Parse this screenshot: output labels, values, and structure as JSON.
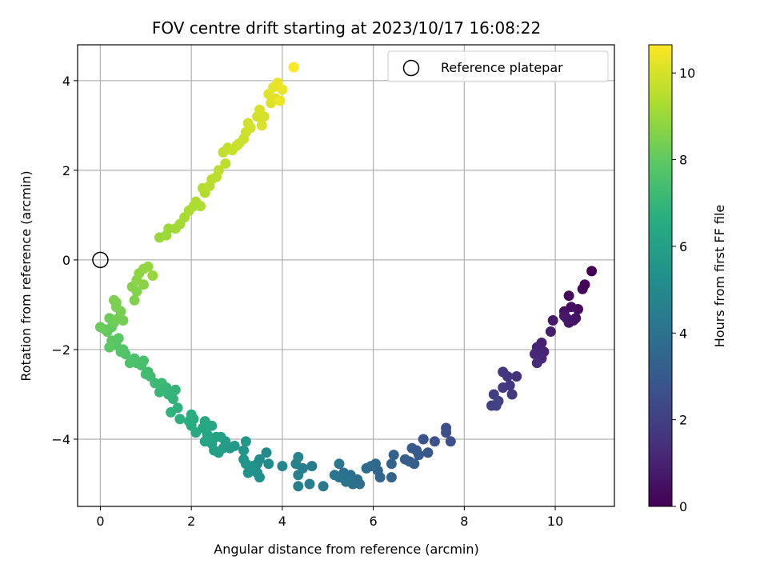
{
  "chart_data": {
    "type": "scatter",
    "title": "FOV centre drift starting at 2023/10/17 16:08:22",
    "xlabel": "Angular distance from reference (arcmin)",
    "ylabel": "Rotation from reference (arcmin)",
    "xlim": [
      -0.5,
      11.3
    ],
    "ylim": [
      -5.5,
      4.8
    ],
    "xticks": [
      0,
      2,
      4,
      6,
      8,
      10
    ],
    "yticks": [
      -4,
      -2,
      0,
      2,
      4
    ],
    "grid": true,
    "legend": {
      "label": "Reference platepar",
      "position": "upper right"
    },
    "reference_point": {
      "x": 0,
      "y": 0
    },
    "colorbar": {
      "label": "Hours from first FF file",
      "range": [
        0,
        10.65
      ],
      "ticks": [
        0,
        2,
        4,
        6,
        8,
        10
      ],
      "colormap": "viridis"
    },
    "points": [
      [
        10.8,
        -0.25,
        0.0
      ],
      [
        10.65,
        -0.55,
        0.1
      ],
      [
        10.6,
        -0.65,
        0.15
      ],
      [
        10.3,
        -0.8,
        0.25
      ],
      [
        10.5,
        -1.1,
        0.35
      ],
      [
        10.35,
        -1.05,
        0.4
      ],
      [
        10.2,
        -1.15,
        0.45
      ],
      [
        10.45,
        -1.3,
        0.5
      ],
      [
        10.25,
        -1.3,
        0.55
      ],
      [
        10.4,
        -1.35,
        0.6
      ],
      [
        10.3,
        -1.4,
        0.65
      ],
      [
        10.2,
        -1.25,
        0.7
      ],
      [
        9.95,
        -1.35,
        0.8
      ],
      [
        9.9,
        -1.6,
        0.9
      ],
      [
        9.7,
        -1.85,
        1.0
      ],
      [
        9.6,
        -1.95,
        1.05
      ],
      [
        9.75,
        -2.05,
        1.1
      ],
      [
        9.55,
        -2.1,
        1.15
      ],
      [
        9.7,
        -2.2,
        1.2
      ],
      [
        9.6,
        -2.3,
        1.3
      ],
      [
        9.15,
        -2.6,
        1.5
      ],
      [
        8.95,
        -2.6,
        1.6
      ],
      [
        8.85,
        -2.5,
        1.65
      ],
      [
        9.0,
        -2.8,
        1.7
      ],
      [
        8.85,
        -2.85,
        1.8
      ],
      [
        9.05,
        -3.0,
        1.85
      ],
      [
        8.65,
        -3.0,
        1.95
      ],
      [
        8.6,
        -3.25,
        2.0
      ],
      [
        8.7,
        -3.25,
        2.05
      ],
      [
        8.75,
        -3.15,
        2.1
      ],
      [
        7.6,
        -3.75,
        2.5
      ],
      [
        7.7,
        -4.05,
        2.6
      ],
      [
        7.6,
        -3.85,
        2.55
      ],
      [
        7.35,
        -4.05,
        2.7
      ],
      [
        7.1,
        -4.0,
        2.8
      ],
      [
        7.2,
        -4.3,
        2.85
      ],
      [
        6.95,
        -4.25,
        2.9
      ],
      [
        6.85,
        -4.2,
        3.0
      ],
      [
        7.0,
        -4.35,
        3.05
      ],
      [
        6.8,
        -4.5,
        3.1
      ],
      [
        6.9,
        -4.55,
        3.15
      ],
      [
        6.7,
        -4.45,
        3.2
      ],
      [
        6.45,
        -4.35,
        3.35
      ],
      [
        6.4,
        -4.55,
        3.4
      ],
      [
        6.4,
        -4.85,
        3.45
      ],
      [
        6.1,
        -4.7,
        3.5
      ],
      [
        6.15,
        -4.85,
        3.55
      ],
      [
        6.05,
        -4.55,
        3.6
      ],
      [
        5.95,
        -4.6,
        3.65
      ],
      [
        5.85,
        -4.65,
        3.7
      ],
      [
        5.65,
        -4.9,
        3.8
      ],
      [
        5.7,
        -5.0,
        3.85
      ],
      [
        5.55,
        -5.0,
        3.9
      ],
      [
        5.5,
        -4.8,
        3.95
      ],
      [
        5.35,
        -4.75,
        4.0
      ],
      [
        5.4,
        -4.95,
        4.05
      ],
      [
        5.25,
        -4.85,
        4.1
      ],
      [
        5.15,
        -4.8,
        4.15
      ],
      [
        5.25,
        -4.55,
        4.2
      ],
      [
        4.9,
        -5.05,
        4.3
      ],
      [
        4.65,
        -4.6,
        4.45
      ],
      [
        4.6,
        -5.0,
        4.5
      ],
      [
        4.45,
        -4.65,
        4.55
      ],
      [
        4.35,
        -4.8,
        4.6
      ],
      [
        4.35,
        -5.05,
        4.65
      ],
      [
        4.3,
        -4.55,
        4.7
      ],
      [
        4.35,
        -4.4,
        4.75
      ],
      [
        4.0,
        -4.6,
        4.85
      ],
      [
        3.65,
        -4.3,
        5.0
      ],
      [
        3.7,
        -4.55,
        5.05
      ],
      [
        3.5,
        -4.45,
        5.15
      ],
      [
        3.45,
        -4.55,
        5.2
      ],
      [
        3.45,
        -4.75,
        5.25
      ],
      [
        3.5,
        -4.85,
        5.3
      ],
      [
        3.35,
        -4.6,
        5.35
      ],
      [
        3.25,
        -4.75,
        5.4
      ],
      [
        3.2,
        -4.55,
        5.45
      ],
      [
        3.15,
        -4.45,
        5.5
      ],
      [
        3.15,
        -4.25,
        5.55
      ],
      [
        3.2,
        -4.05,
        5.6
      ],
      [
        2.95,
        -4.15,
        5.7
      ],
      [
        2.85,
        -4.2,
        5.75
      ],
      [
        2.75,
        -4.05,
        5.8
      ],
      [
        2.7,
        -4.2,
        5.85
      ],
      [
        2.6,
        -4.3,
        5.9
      ],
      [
        2.5,
        -4.25,
        5.95
      ],
      [
        2.65,
        -3.95,
        6.0
      ],
      [
        2.55,
        -3.95,
        6.05
      ],
      [
        2.45,
        -4.1,
        6.1
      ],
      [
        2.4,
        -4.0,
        6.15
      ],
      [
        2.3,
        -4.05,
        6.2
      ],
      [
        2.35,
        -3.9,
        6.25
      ],
      [
        2.25,
        -3.75,
        6.3
      ],
      [
        2.45,
        -3.7,
        6.35
      ],
      [
        2.3,
        -3.6,
        6.4
      ],
      [
        2.1,
        -3.85,
        6.45
      ],
      [
        2.0,
        -3.7,
        6.5
      ],
      [
        2.05,
        -3.55,
        6.55
      ],
      [
        1.95,
        -3.6,
        6.6
      ],
      [
        2.0,
        -3.45,
        6.65
      ],
      [
        1.75,
        -3.55,
        6.75
      ],
      [
        1.7,
        -3.3,
        6.8
      ],
      [
        1.55,
        -3.4,
        6.85
      ],
      [
        1.6,
        -3.1,
        6.9
      ],
      [
        1.65,
        -2.9,
        6.95
      ],
      [
        1.5,
        -3.0,
        7.0
      ],
      [
        1.45,
        -2.85,
        7.05
      ],
      [
        1.3,
        -2.95,
        7.1
      ],
      [
        1.35,
        -2.75,
        7.15
      ],
      [
        1.2,
        -2.75,
        7.2
      ],
      [
        1.1,
        -2.6,
        7.25
      ],
      [
        1.05,
        -2.5,
        7.3
      ],
      [
        1.0,
        -2.55,
        7.35
      ],
      [
        0.9,
        -2.35,
        7.4
      ],
      [
        0.95,
        -2.25,
        7.45
      ],
      [
        0.8,
        -2.3,
        7.5
      ],
      [
        0.75,
        -2.2,
        7.55
      ],
      [
        0.65,
        -2.3,
        7.6
      ],
      [
        0.55,
        -2.1,
        7.65
      ],
      [
        0.5,
        -2.0,
        7.7
      ],
      [
        0.45,
        -2.05,
        7.75
      ],
      [
        0.35,
        -1.9,
        7.8
      ],
      [
        0.4,
        -1.75,
        7.85
      ],
      [
        0.25,
        -1.8,
        7.9
      ],
      [
        0.2,
        -1.95,
        7.95
      ],
      [
        0.15,
        -1.6,
        8.0
      ],
      [
        0.25,
        -1.5,
        8.05
      ],
      [
        0.1,
        -1.55,
        8.1
      ],
      [
        0.0,
        -1.5,
        8.15
      ],
      [
        0.2,
        -1.3,
        8.2
      ],
      [
        0.3,
        -1.4,
        8.25
      ],
      [
        0.4,
        -1.3,
        8.3
      ],
      [
        0.5,
        -1.35,
        8.35
      ],
      [
        0.45,
        -1.15,
        8.4
      ],
      [
        0.35,
        -1.05,
        8.45
      ],
      [
        0.3,
        -0.9,
        8.5
      ],
      [
        0.35,
        -0.95,
        8.5
      ],
      [
        0.75,
        -0.9,
        8.55
      ],
      [
        0.8,
        -0.7,
        8.6
      ],
      [
        0.7,
        -0.6,
        8.65
      ],
      [
        0.95,
        -0.55,
        8.7
      ],
      [
        0.8,
        -0.45,
        8.75
      ],
      [
        0.85,
        -0.3,
        8.8
      ],
      [
        0.95,
        -0.2,
        8.85
      ],
      [
        1.05,
        -0.15,
        8.9
      ],
      [
        1.15,
        -0.35,
        8.95
      ],
      [
        1.3,
        0.5,
        9.0
      ],
      [
        1.45,
        0.55,
        9.05
      ],
      [
        1.5,
        0.7,
        9.05
      ],
      [
        1.65,
        0.7,
        9.1
      ],
      [
        1.75,
        0.8,
        9.15
      ],
      [
        1.85,
        0.95,
        9.2
      ],
      [
        1.95,
        1.1,
        9.25
      ],
      [
        2.05,
        1.2,
        9.3
      ],
      [
        2.2,
        1.2,
        9.35
      ],
      [
        2.1,
        1.3,
        9.35
      ],
      [
        2.3,
        1.5,
        9.4
      ],
      [
        2.25,
        1.6,
        9.45
      ],
      [
        2.4,
        1.65,
        9.5
      ],
      [
        2.45,
        1.8,
        9.5
      ],
      [
        2.55,
        1.85,
        9.55
      ],
      [
        2.6,
        2.0,
        9.6
      ],
      [
        2.75,
        2.15,
        9.6
      ],
      [
        2.7,
        2.4,
        9.65
      ],
      [
        2.8,
        2.5,
        9.7
      ],
      [
        2.9,
        2.45,
        9.75
      ],
      [
        3.0,
        2.55,
        9.75
      ],
      [
        3.05,
        2.6,
        9.8
      ],
      [
        3.15,
        2.7,
        9.8
      ],
      [
        3.2,
        2.85,
        9.85
      ],
      [
        3.3,
        2.95,
        9.9
      ],
      [
        3.25,
        3.05,
        9.9
      ],
      [
        3.45,
        3.2,
        9.95
      ],
      [
        3.5,
        3.35,
        10.0
      ],
      [
        3.6,
        3.2,
        10.0
      ],
      [
        3.55,
        3.0,
        10.05
      ],
      [
        3.75,
        3.5,
        10.1
      ],
      [
        3.7,
        3.7,
        10.15
      ],
      [
        3.85,
        3.6,
        10.2
      ],
      [
        3.8,
        3.85,
        10.25
      ],
      [
        3.9,
        3.95,
        10.3
      ],
      [
        4.0,
        3.8,
        10.35
      ],
      [
        3.95,
        3.55,
        10.4
      ],
      [
        4.25,
        4.3,
        10.6
      ]
    ]
  }
}
